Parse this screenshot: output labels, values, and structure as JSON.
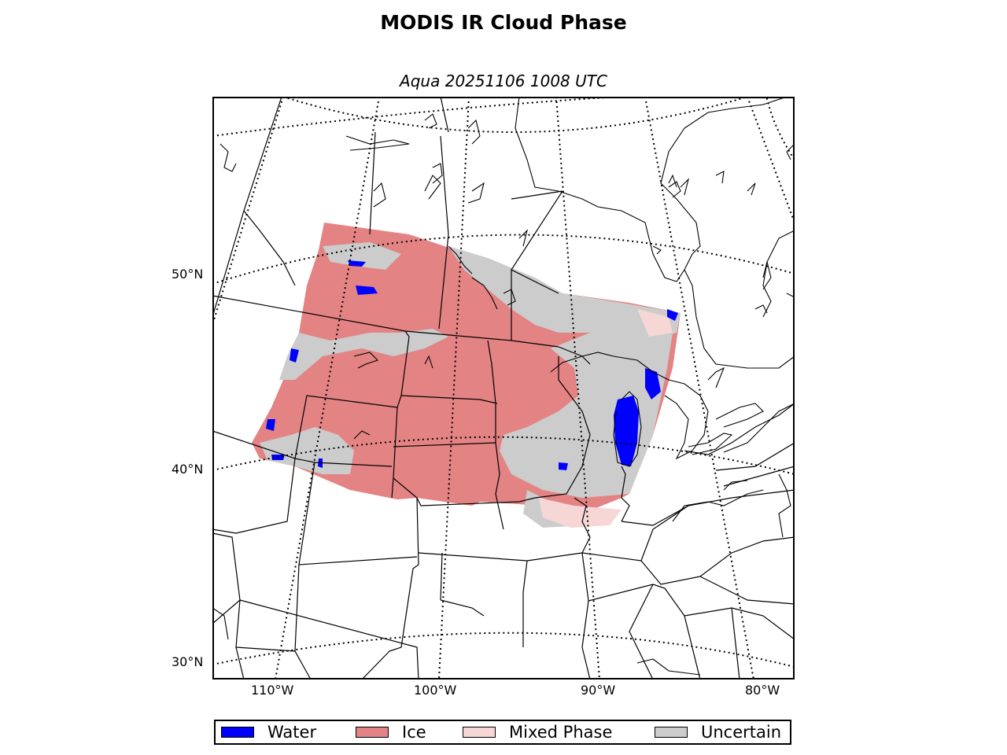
{
  "figure": {
    "title": "MODIS IR Cloud Phase",
    "subtitle": "Aqua 20251106 1008 UTC"
  },
  "axes": {
    "lat_labels": [
      "50°N",
      "40°N",
      "30°N"
    ],
    "lon_labels": [
      "110°W",
      "100°W",
      "90°W",
      "80°W"
    ]
  },
  "legend": {
    "items": [
      {
        "label": "Water",
        "color": "#0000ff"
      },
      {
        "label": "Ice",
        "color": "#e38383"
      },
      {
        "label": "Mixed Phase",
        "color": "#f7d6d6"
      },
      {
        "label": "Uncertain",
        "color": "#cccccc"
      }
    ]
  },
  "colors": {
    "water": "#0000ff",
    "ice": "#e38383",
    "mixed": "#f7d6d6",
    "uncertain": "#cccccc",
    "boundary": "#000000"
  }
}
